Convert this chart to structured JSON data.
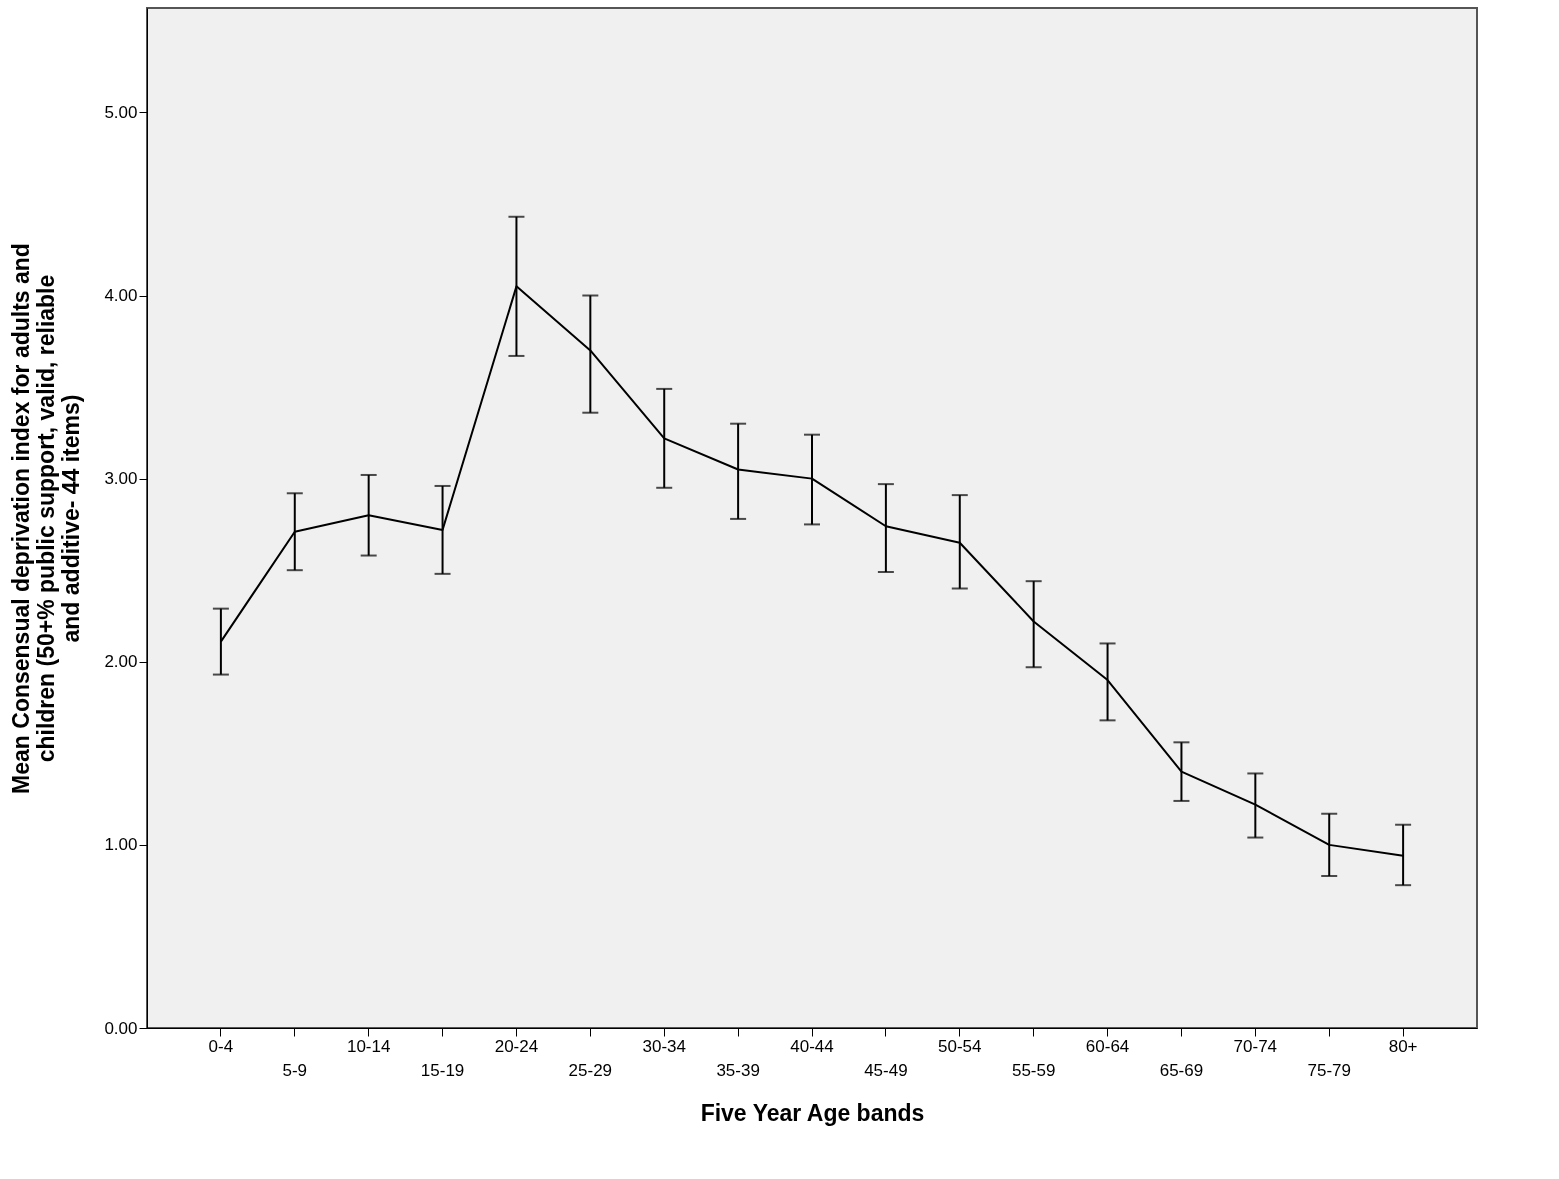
{
  "chart_data": {
    "type": "line",
    "xlabel": "Five Year Age bands",
    "ylabel": "Mean Consensual deprivation index for adults and children (50+% public support, valid, reliable and additive- 44 items)",
    "categories": [
      "0-4",
      "5-9",
      "10-14",
      "15-19",
      "20-24",
      "25-29",
      "30-34",
      "35-39",
      "40-44",
      "45-49",
      "50-54",
      "55-59",
      "60-64",
      "65-69",
      "70-74",
      "75-79",
      "80+"
    ],
    "series": [
      {
        "color": "#000000",
        "values": [
          2.11,
          2.71,
          2.8,
          2.72,
          4.05,
          3.7,
          3.22,
          3.05,
          3.0,
          2.74,
          2.65,
          2.22,
          1.9,
          1.4,
          1.22,
          1.0,
          0.94
        ],
        "errors": [
          [
            1.93,
            2.29
          ],
          [
            2.5,
            2.92
          ],
          [
            2.58,
            3.02
          ],
          [
            2.48,
            2.96
          ],
          [
            3.67,
            4.43
          ],
          [
            3.36,
            4.0
          ],
          [
            2.95,
            3.49
          ],
          [
            2.78,
            3.3
          ],
          [
            2.75,
            3.24
          ],
          [
            2.49,
            2.97
          ],
          [
            2.4,
            2.91
          ],
          [
            1.97,
            2.44
          ],
          [
            1.68,
            2.1
          ],
          [
            1.24,
            1.56
          ],
          [
            1.04,
            1.39
          ],
          [
            0.83,
            1.17
          ],
          [
            0.78,
            1.11
          ]
        ]
      }
    ],
    "ylim": [
      0,
      5.57
    ],
    "yticks": [
      {
        "value": 0,
        "label": "0.00"
      },
      {
        "value": 1,
        "label": "1.00"
      },
      {
        "value": 2,
        "label": "2.00"
      },
      {
        "value": 3,
        "label": "3.00"
      },
      {
        "value": 4,
        "label": "4.00"
      },
      {
        "value": 5,
        "label": "5.00"
      }
    ],
    "grid": false,
    "marker": "none",
    "line_style": "solid"
  }
}
